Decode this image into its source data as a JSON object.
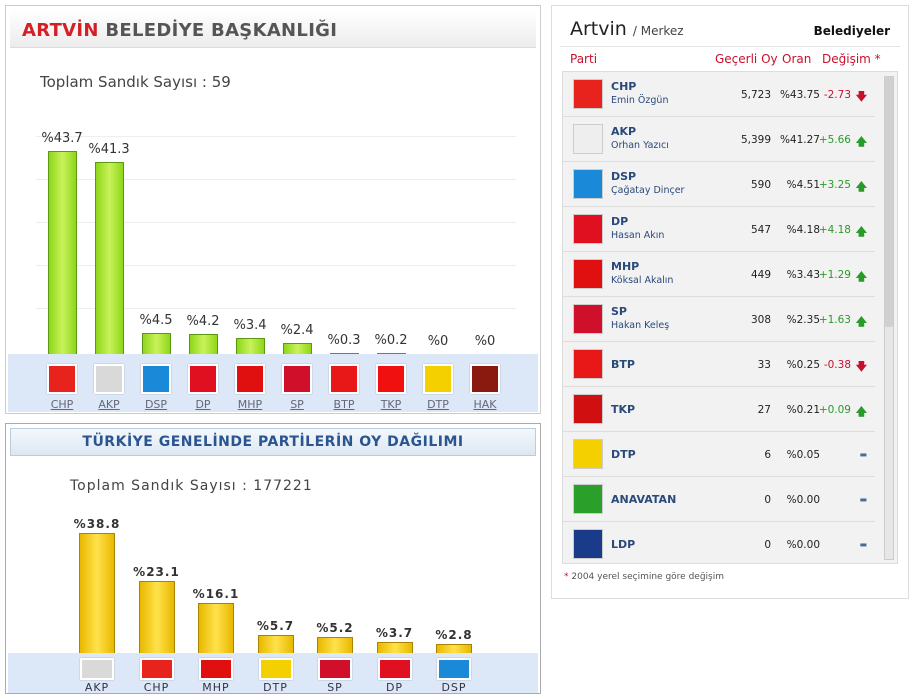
{
  "local": {
    "title_city": "ARTVİN",
    "title_rest": "BELEDİYE BAŞKANLIĞI",
    "total_label": "Toplam Sandık Sayısı : 59",
    "parties": [
      {
        "name": "CHP",
        "value": 43.7,
        "label": "%43.7",
        "color": "#e8231e"
      },
      {
        "name": "AKP",
        "value": 41.3,
        "label": "%41.3",
        "color": "#d9d9d9"
      },
      {
        "name": "DSP",
        "value": 4.5,
        "label": "%4.5",
        "color": "#1a8ad8"
      },
      {
        "name": "DP",
        "value": 4.2,
        "label": "%4.2",
        "color": "#e01020"
      },
      {
        "name": "MHP",
        "value": 3.4,
        "label": "%3.4",
        "color": "#e01010"
      },
      {
        "name": "SP",
        "value": 2.4,
        "label": "%2.4",
        "color": "#d0102a"
      },
      {
        "name": "BTP",
        "value": 0.3,
        "label": "%0.3",
        "color": "#e81818"
      },
      {
        "name": "TKP",
        "value": 0.2,
        "label": "%0.2",
        "color": "#f01010"
      },
      {
        "name": "DTP",
        "value": 0,
        "label": "%0",
        "color": "#f5d000"
      },
      {
        "name": "HAK",
        "value": 0,
        "label": "%0",
        "color": "#8a1a10"
      }
    ]
  },
  "national": {
    "title": "TÜRKİYE GENELİNDE PARTİLERİN OY DAĞILIMI",
    "total_label": "Toplam Sandık Sayısı : 177221",
    "parties": [
      {
        "name": "AKP",
        "value": 38.8,
        "label": "%38.8",
        "color": "#d9d9d9"
      },
      {
        "name": "CHP",
        "value": 23.1,
        "label": "%23.1",
        "color": "#e8231e"
      },
      {
        "name": "MHP",
        "value": 16.1,
        "label": "%16.1",
        "color": "#e01010"
      },
      {
        "name": "DTP",
        "value": 5.7,
        "label": "%5.7",
        "color": "#f5d000"
      },
      {
        "name": "SP",
        "value": 5.2,
        "label": "%5.2",
        "color": "#d0102a"
      },
      {
        "name": "DP",
        "value": 3.7,
        "label": "%3.7",
        "color": "#e01020"
      },
      {
        "name": "DSP",
        "value": 2.8,
        "label": "%2.8",
        "color": "#1a8ad8"
      }
    ]
  },
  "results": {
    "city": "Artvin",
    "district": "/ Merkez",
    "tab": "Belediyeler",
    "headers": {
      "party": "Parti",
      "votes": "Geçerli Oy",
      "ratio": "Oran",
      "change": "Değişim *"
    },
    "rows": [
      {
        "party": "CHP",
        "candidate": "Emin Özgün",
        "votes": "5,723",
        "ratio": "%43.75",
        "change": "-2.73",
        "dir": "down",
        "color": "#e8231e"
      },
      {
        "party": "AKP",
        "candidate": "Orhan Yazıcı",
        "votes": "5,399",
        "ratio": "%41.27",
        "change": "+5.66",
        "dir": "up",
        "color": "#eeeeee"
      },
      {
        "party": "DSP",
        "candidate": "Çağatay Dinçer",
        "votes": "590",
        "ratio": "%4.51",
        "change": "+3.25",
        "dir": "up",
        "color": "#1a8ad8"
      },
      {
        "party": "DP",
        "candidate": "Hasan Akın",
        "votes": "547",
        "ratio": "%4.18",
        "change": "+4.18",
        "dir": "up",
        "color": "#e01020"
      },
      {
        "party": "MHP",
        "candidate": "Köksal Akalın",
        "votes": "449",
        "ratio": "%3.43",
        "change": "+1.29",
        "dir": "up",
        "color": "#e01010"
      },
      {
        "party": "SP",
        "candidate": "Hakan Keleş",
        "votes": "308",
        "ratio": "%2.35",
        "change": "+1.63",
        "dir": "up",
        "color": "#d0102a"
      },
      {
        "party": "BTP",
        "candidate": "",
        "votes": "33",
        "ratio": "%0.25",
        "change": "-0.38",
        "dir": "down",
        "color": "#e81818"
      },
      {
        "party": "TKP",
        "candidate": "",
        "votes": "27",
        "ratio": "%0.21",
        "change": "+0.09",
        "dir": "up",
        "color": "#d01010"
      },
      {
        "party": "DTP",
        "candidate": "",
        "votes": "6",
        "ratio": "%0.05",
        "change": "",
        "dir": "none",
        "color": "#f5d000"
      },
      {
        "party": "ANAVATAN",
        "candidate": "",
        "votes": "0",
        "ratio": "%0.00",
        "change": "",
        "dir": "none",
        "color": "#2aa02a"
      },
      {
        "party": "LDP",
        "candidate": "",
        "votes": "0",
        "ratio": "%0.00",
        "change": "",
        "dir": "none",
        "color": "#1a3a8a"
      }
    ],
    "footnote_mark": "*",
    "footnote": "2004 yerel seçimine göre değişim"
  }
}
